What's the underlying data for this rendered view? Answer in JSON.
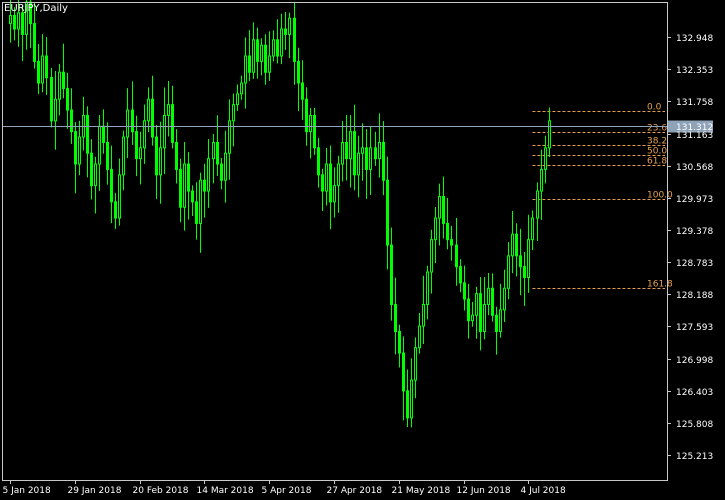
{
  "chart_data": {
    "type": "candlestick",
    "title": "EURJPY,Daily",
    "symbol": "EURJPY",
    "timeframe": "Daily",
    "current_price": "131.312",
    "ylim": [
      124.75,
      133.6
    ],
    "y_ticks": [
      "132.948",
      "132.353",
      "131.758",
      "131.163",
      "130.568",
      "129.973",
      "129.378",
      "128.783",
      "128.188",
      "127.593",
      "126.998",
      "126.403",
      "125.808",
      "125.213"
    ],
    "x_ticks": [
      {
        "label": "5 Jan 2018",
        "bar": 0
      },
      {
        "label": "29 Jan 2018",
        "bar": 16
      },
      {
        "label": "20 Feb 2018",
        "bar": 32
      },
      {
        "label": "14 Mar 2018",
        "bar": 48
      },
      {
        "label": "5 Apr 2018",
        "bar": 64
      },
      {
        "label": "27 Apr 2018",
        "bar": 80
      },
      {
        "label": "21 May 2018",
        "bar": 96
      },
      {
        "label": "12 Jun 2018",
        "bar": 112
      },
      {
        "label": "4 Jul 2018",
        "bar": 128
      }
    ],
    "fibonacci": {
      "levels": [
        {
          "label": "0.0",
          "price": 131.58
        },
        {
          "label": "23.6",
          "price": 131.2
        },
        {
          "label": "38.2",
          "price": 130.95
        },
        {
          "label": "50.0",
          "price": 130.77
        },
        {
          "label": "61.8",
          "price": 130.58
        },
        {
          "label": "100.0",
          "price": 129.95
        },
        {
          "label": "161.8",
          "price": 128.3
        }
      ]
    },
    "series": [
      {
        "closes": [
          133.35,
          133.1,
          133.4,
          133.0,
          133.6,
          133.2,
          132.5,
          132.1,
          132.6,
          132.2,
          131.4,
          131.8,
          132.3,
          132.0,
          131.6,
          131.2,
          130.6,
          131.1,
          131.5,
          130.8,
          130.2,
          130.6,
          131.3,
          131.0,
          130.5,
          129.9,
          129.6,
          130.4,
          131.1,
          131.6,
          131.2,
          130.7,
          130.9,
          131.4,
          131.8,
          131.1,
          130.4,
          130.9,
          131.5,
          131.7,
          131.0,
          130.5,
          129.8,
          130.6,
          130.1,
          129.9,
          129.5,
          130.3,
          130.1,
          130.7,
          131.0,
          130.6,
          130.3,
          130.8,
          131.4,
          131.7,
          131.9,
          132.1,
          132.6,
          132.3,
          132.9,
          132.5,
          132.8,
          132.3,
          132.6,
          132.9,
          132.6,
          133.1,
          133.0,
          133.3,
          132.5,
          132.1,
          131.8,
          131.2,
          131.5,
          130.9,
          130.4,
          130.1,
          130.6,
          129.9,
          130.2,
          130.6,
          131.0,
          130.7,
          131.2,
          130.4,
          130.8,
          130.9,
          130.5,
          130.9,
          130.7,
          131.0,
          130.3,
          129.1,
          128.0,
          127.5,
          127.1,
          126.4,
          125.9,
          126.6,
          127.2,
          127.6,
          128.0,
          128.6,
          129.2,
          129.6,
          130.0,
          129.5,
          129.2,
          129.1,
          128.7,
          128.4,
          128.1,
          127.7,
          127.8,
          128.2,
          127.5,
          128.0,
          128.3,
          127.8,
          127.5,
          127.9,
          128.3,
          128.9,
          129.3,
          128.9,
          128.7,
          128.5,
          129.2,
          129.6,
          130.1,
          130.5,
          130.9,
          131.4
        ],
        "color": "#00FF00"
      }
    ]
  }
}
